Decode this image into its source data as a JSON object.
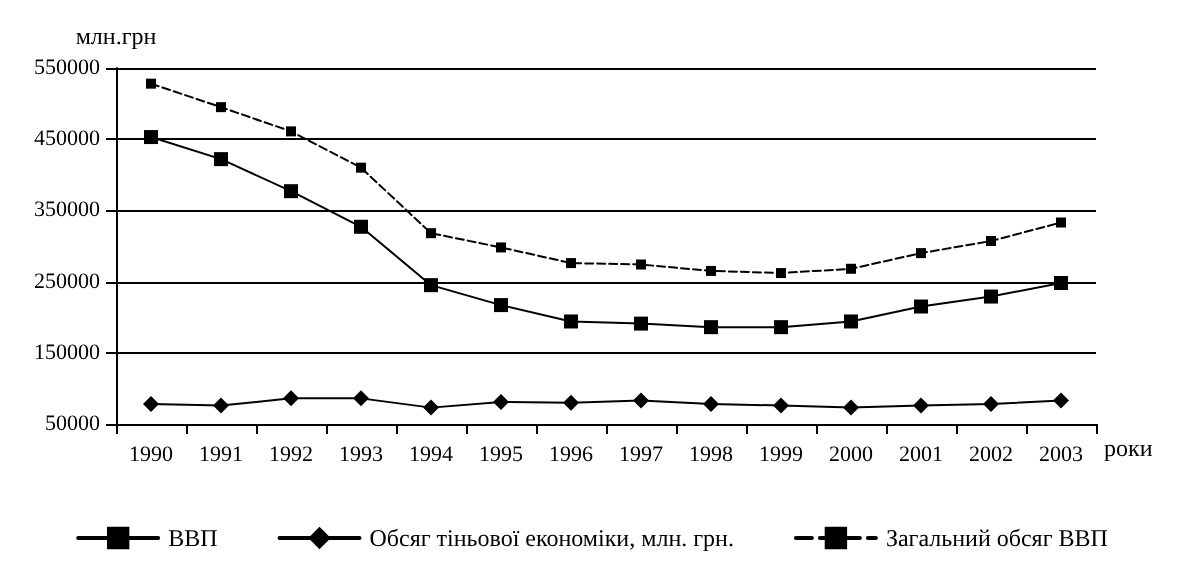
{
  "chart_data": {
    "type": "line",
    "ylabel": "млн.грн",
    "xlabel": "роки",
    "categories": [
      "1990",
      "1991",
      "1992",
      "1993",
      "1994",
      "1995",
      "1996",
      "1997",
      "1998",
      "1999",
      "2000",
      "2001",
      "2002",
      "2003"
    ],
    "series": [
      {
        "name": "ВВП",
        "color": "#000000",
        "marker": "square",
        "line_style": "solid",
        "values": [
          453000,
          422000,
          377000,
          327000,
          245000,
          217000,
          194000,
          191000,
          186000,
          186000,
          194000,
          215000,
          229000,
          248000
        ]
      },
      {
        "name": "Обсяг тіньової економіки, млн. грн.",
        "color": "#000000",
        "marker": "diamond",
        "line_style": "solid",
        "values": [
          78000,
          76000,
          86000,
          86000,
          73000,
          81000,
          80000,
          83000,
          78000,
          76000,
          73000,
          76000,
          78000,
          83000
        ]
      },
      {
        "name": "Загальний обсяг ВВП",
        "color": "#000000",
        "marker": "square",
        "line_style": "dashed",
        "values": [
          528000,
          495000,
          461000,
          410000,
          318000,
          298000,
          276000,
          274000,
          265000,
          262000,
          268000,
          290000,
          307000,
          333000
        ]
      }
    ],
    "ylim": [
      50000,
      550000
    ],
    "yticks": [
      50000,
      150000,
      250000,
      350000,
      450000,
      550000
    ],
    "grid": "y",
    "legend": "bottom"
  }
}
